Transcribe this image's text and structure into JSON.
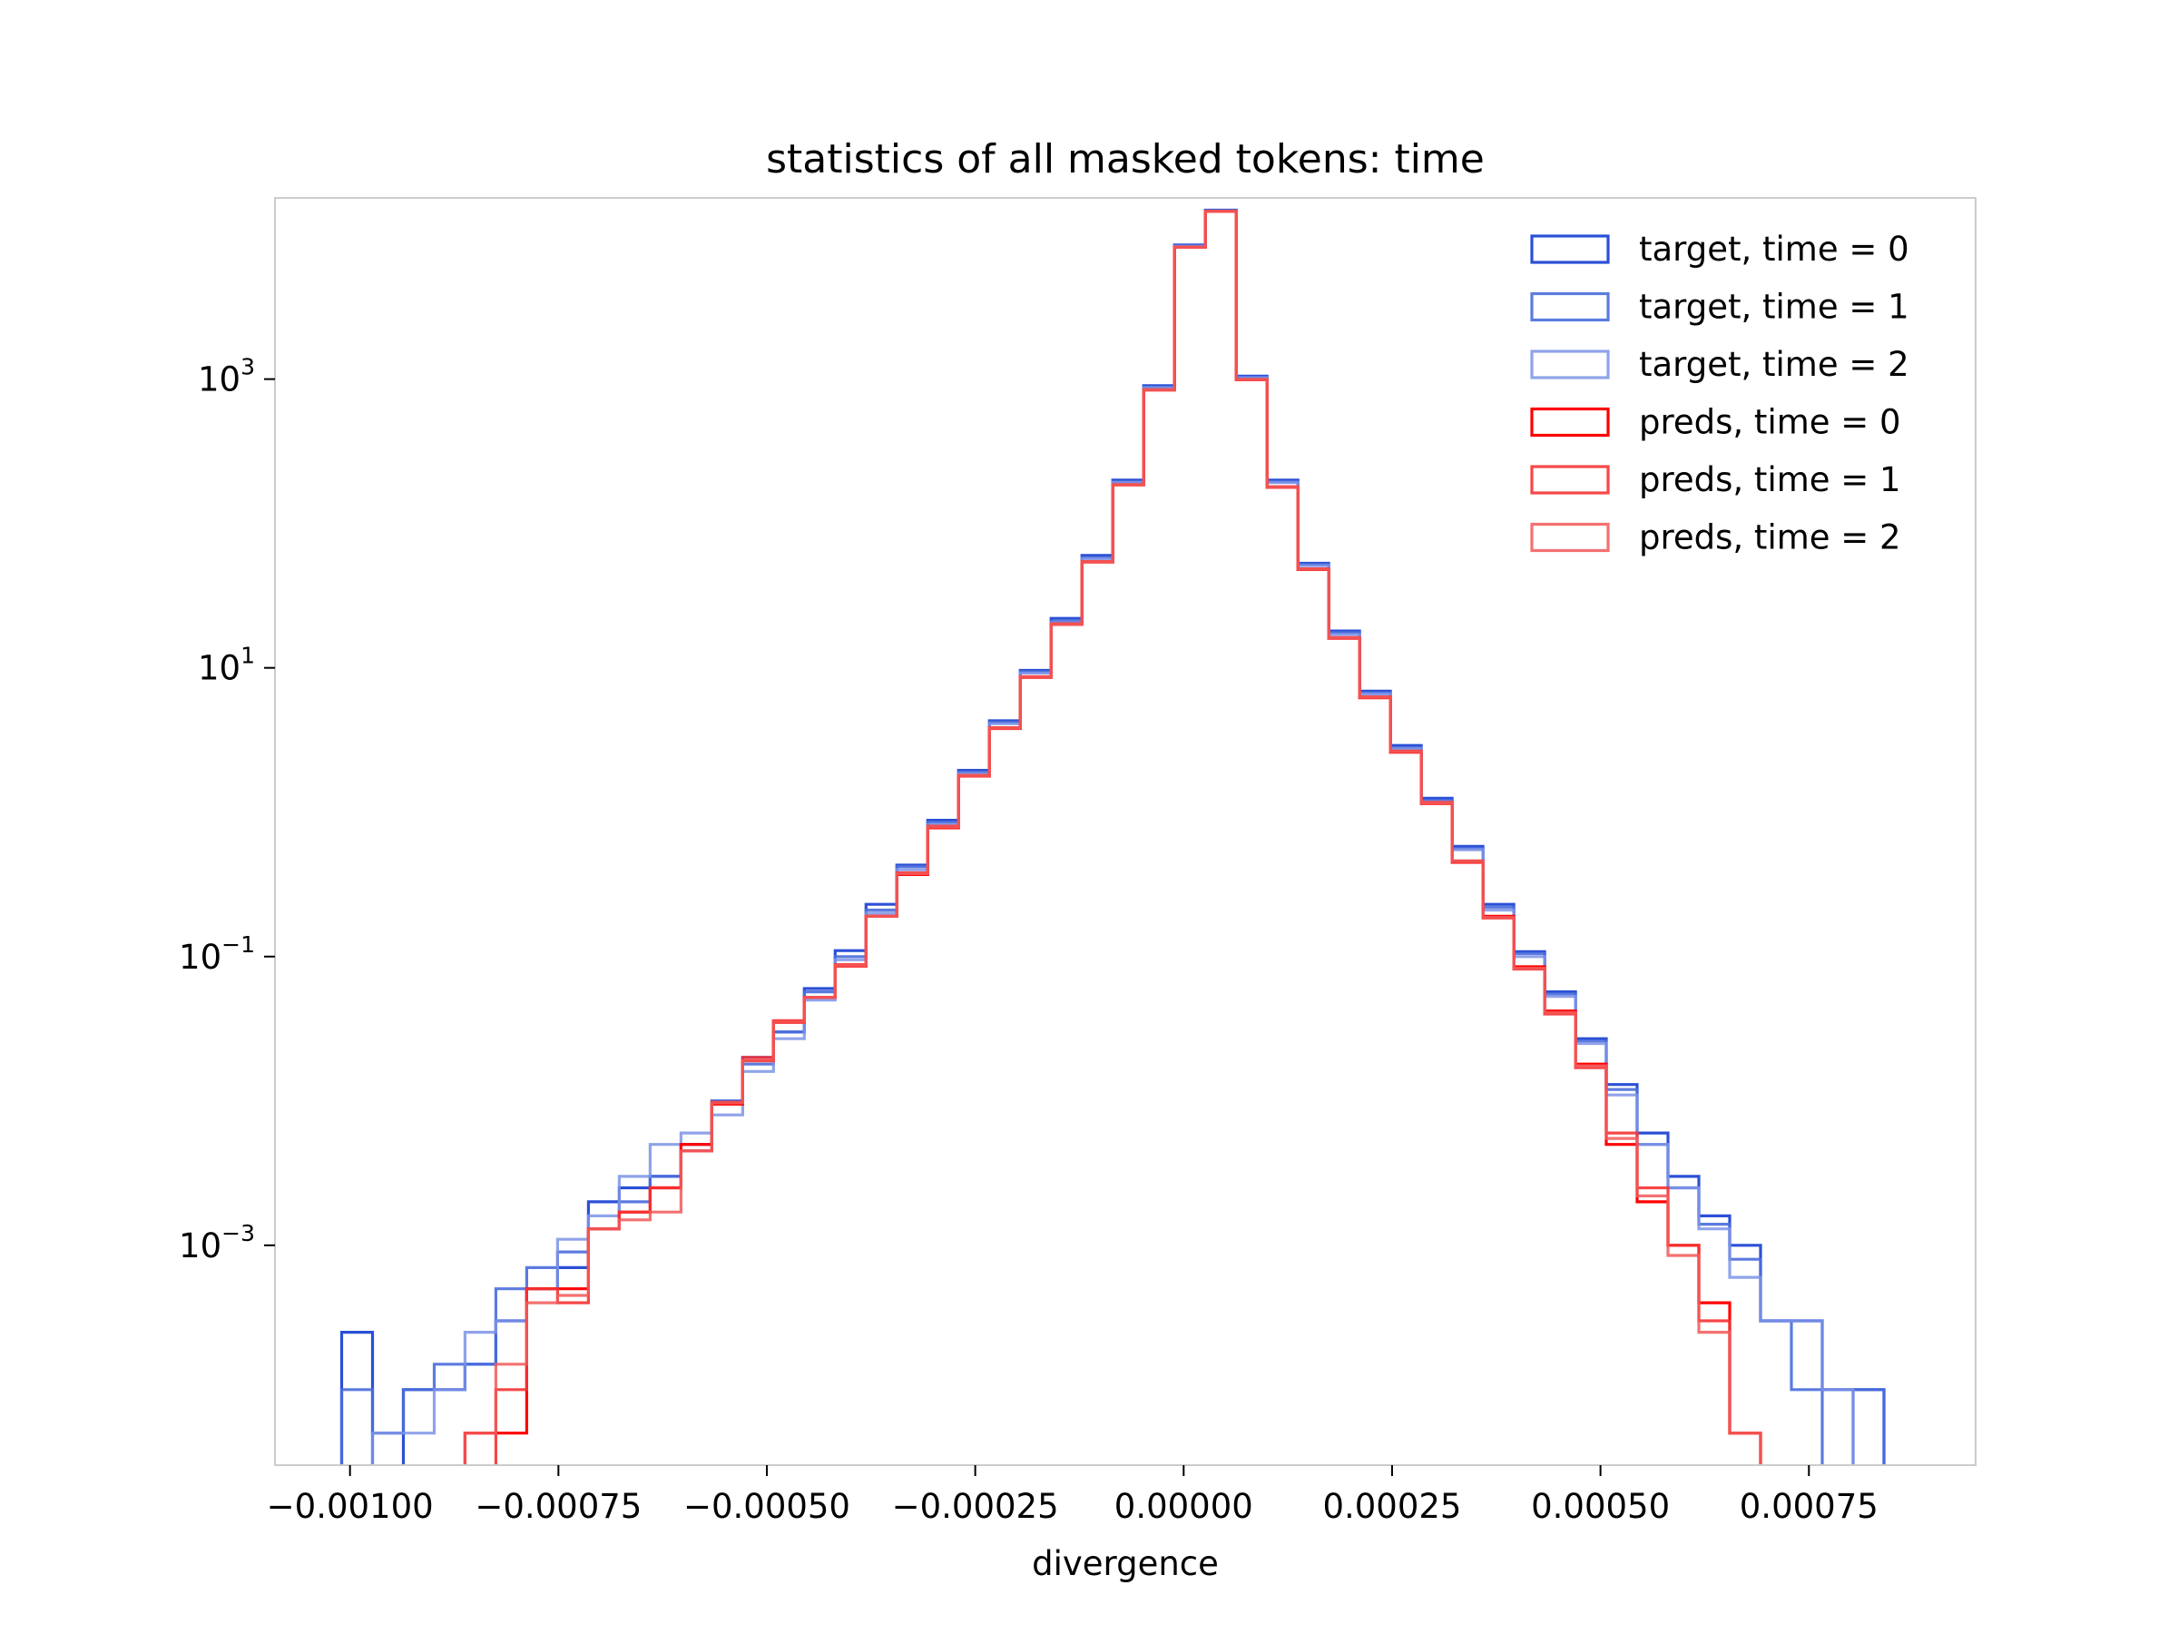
{
  "chart_data": {
    "type": "histogram",
    "title": "statistics of all masked tokens: time",
    "xlabel": "divergence",
    "ylabel": "",
    "yscale": "log",
    "xlim": [
      -0.00109,
      0.00095
    ],
    "ylim": [
      3e-05,
      18000
    ],
    "grid": false,
    "legend_position": "top-right",
    "x_ticks": [
      {
        "value": -0.001,
        "label": "−0.00100"
      },
      {
        "value": -0.00075,
        "label": "−0.00075"
      },
      {
        "value": -0.0005,
        "label": "−0.00050"
      },
      {
        "value": -0.00025,
        "label": "−0.00025"
      },
      {
        "value": 0.0,
        "label": "0.00000"
      },
      {
        "value": 0.00025,
        "label": "0.00025"
      },
      {
        "value": 0.0005,
        "label": "0.00050"
      },
      {
        "value": 0.00075,
        "label": "0.00075"
      }
    ],
    "y_ticks": [
      {
        "value": 1000,
        "base": "10",
        "exp": "3"
      },
      {
        "value": 10,
        "base": "10",
        "exp": "1"
      },
      {
        "value": 0.1,
        "base": "10",
        "exp": "−1"
      },
      {
        "value": 0.001,
        "base": "10",
        "exp": "−3"
      }
    ],
    "bin_edges": [
      -0.00101,
      -0.000973,
      -0.000936,
      -0.000899,
      -0.000862,
      -0.000825,
      -0.000788,
      -0.000751,
      -0.000714,
      -0.000677,
      -0.00064,
      -0.000603,
      -0.000566,
      -0.000529,
      -0.000492,
      -0.000455,
      -0.000418,
      -0.000381,
      -0.000344,
      -0.000307,
      -0.00027,
      -0.000233,
      -0.000196,
      -0.000159,
      -0.000122,
      -8.5e-05,
      -4.8e-05,
      -1.1e-05,
      2.6e-05,
      6.3e-05,
      0.0001,
      0.000137,
      0.000174,
      0.000211,
      0.000248,
      0.000285,
      0.000322,
      0.000359,
      0.000396,
      0.000433,
      0.00047,
      0.000507,
      0.000544,
      0.000581,
      0.000618,
      0.000655,
      0.000692,
      0.000729,
      0.000766,
      0.000803,
      0.00084
    ],
    "series": [
      {
        "name": "target, time = 0",
        "color": "#2b50d6",
        "opacity": 1.0,
        "values": [
          0.00025,
          null,
          0.0001,
          0.0001,
          0.00015,
          0.0003,
          0.0005,
          0.0007,
          0.002,
          0.0025,
          0.003,
          0.005,
          0.01,
          0.02,
          0.03,
          0.06,
          0.11,
          0.23,
          0.43,
          0.88,
          1.95,
          4.3,
          9.6,
          22,
          60,
          200,
          900,
          8500,
          14800,
          1050,
          200,
          53,
          18,
          6.9,
          2.9,
          1.25,
          0.58,
          0.23,
          0.108,
          0.057,
          0.027,
          0.013,
          0.006,
          0.003,
          0.0016,
          0.001,
          0.0003,
          0.0003,
          0.0001,
          0.0001
        ]
      },
      {
        "name": "target, time = 1",
        "color": "#4a6ddc",
        "opacity": 0.9,
        "values": [
          0.0001,
          5e-05,
          0.0001,
          0.00015,
          0.00015,
          0.0005,
          0.0007,
          0.0009,
          0.0013,
          0.002,
          0.003,
          0.0045,
          0.01,
          0.018,
          0.03,
          0.057,
          0.1,
          0.21,
          0.42,
          0.85,
          1.9,
          4.2,
          9.4,
          21,
          58,
          195,
          880,
          8400,
          14700,
          1030,
          195,
          52,
          17.5,
          6.7,
          2.8,
          1.2,
          0.56,
          0.22,
          0.105,
          0.055,
          0.026,
          0.012,
          0.005,
          0.0025,
          0.0014,
          0.0008,
          0.0003,
          0.0001,
          null,
          0.0001
        ]
      },
      {
        "name": "target, time = 2",
        "color": "#7c93e6",
        "opacity": 0.85,
        "values": [
          null,
          5e-05,
          5e-05,
          0.0001,
          0.00025,
          0.0003,
          0.0005,
          0.0011,
          0.0016,
          0.003,
          0.005,
          0.006,
          0.008,
          0.016,
          0.027,
          0.05,
          0.095,
          0.2,
          0.4,
          0.82,
          1.85,
          4.1,
          9.2,
          20.5,
          57,
          192,
          870,
          8300,
          14600,
          1020,
          192,
          51,
          17,
          6.6,
          2.75,
          1.18,
          0.55,
          0.21,
          0.1,
          0.053,
          0.025,
          0.011,
          0.005,
          0.0025,
          0.0013,
          0.0006,
          0.0003,
          0.0003,
          0.0001,
          null
        ]
      },
      {
        "name": "preds, time = 0",
        "color": "#ff0000",
        "opacity": 1.0,
        "values": [
          null,
          null,
          null,
          null,
          5e-05,
          5e-05,
          0.0005,
          0.0005,
          0.0013,
          0.0017,
          0.0025,
          0.005,
          0.0095,
          0.019,
          0.035,
          0.052,
          0.086,
          0.19,
          0.37,
          0.78,
          1.78,
          3.8,
          8.6,
          20,
          54,
          185,
          840,
          8200,
          14500,
          990,
          178,
          48,
          16,
          6.2,
          2.6,
          1.15,
          0.45,
          0.19,
          0.085,
          0.042,
          0.018,
          0.005,
          0.002,
          0.001,
          0.0004,
          5e-05,
          null,
          null,
          null,
          null
        ]
      },
      {
        "name": "preds, time = 1",
        "color": "#f53333",
        "opacity": 0.9,
        "values": [
          null,
          null,
          null,
          null,
          null,
          0.0001,
          0.0005,
          0.0004,
          0.0013,
          0.0017,
          0.0025,
          0.0045,
          0.0098,
          0.02,
          0.036,
          0.052,
          0.088,
          0.19,
          0.38,
          0.8,
          1.8,
          3.85,
          8.7,
          20.2,
          54.5,
          186,
          845,
          8220,
          14520,
          995,
          180,
          48.5,
          16.2,
          6.3,
          2.65,
          1.17,
          0.46,
          0.185,
          0.082,
          0.04,
          0.017,
          0.006,
          0.0025,
          0.001,
          0.0003,
          5e-05,
          null,
          null,
          null,
          null
        ]
      },
      {
        "name": "preds, time = 2",
        "color": "#f25858",
        "opacity": 0.85,
        "values": [
          null,
          null,
          null,
          null,
          5e-05,
          0.00015,
          0.0004,
          0.00045,
          0.0013,
          0.0015,
          0.0017,
          0.0045,
          0.0097,
          0.019,
          0.035,
          0.052,
          0.087,
          0.19,
          0.375,
          0.79,
          1.79,
          3.82,
          8.65,
          20.1,
          54.2,
          185.5,
          842,
          8210,
          14510,
          992,
          179,
          48.2,
          16.1,
          6.25,
          2.62,
          1.16,
          0.455,
          0.187,
          0.083,
          0.041,
          0.0175,
          0.0055,
          0.0022,
          0.00085,
          0.00025,
          5e-05,
          null,
          null,
          null,
          null
        ]
      }
    ]
  }
}
